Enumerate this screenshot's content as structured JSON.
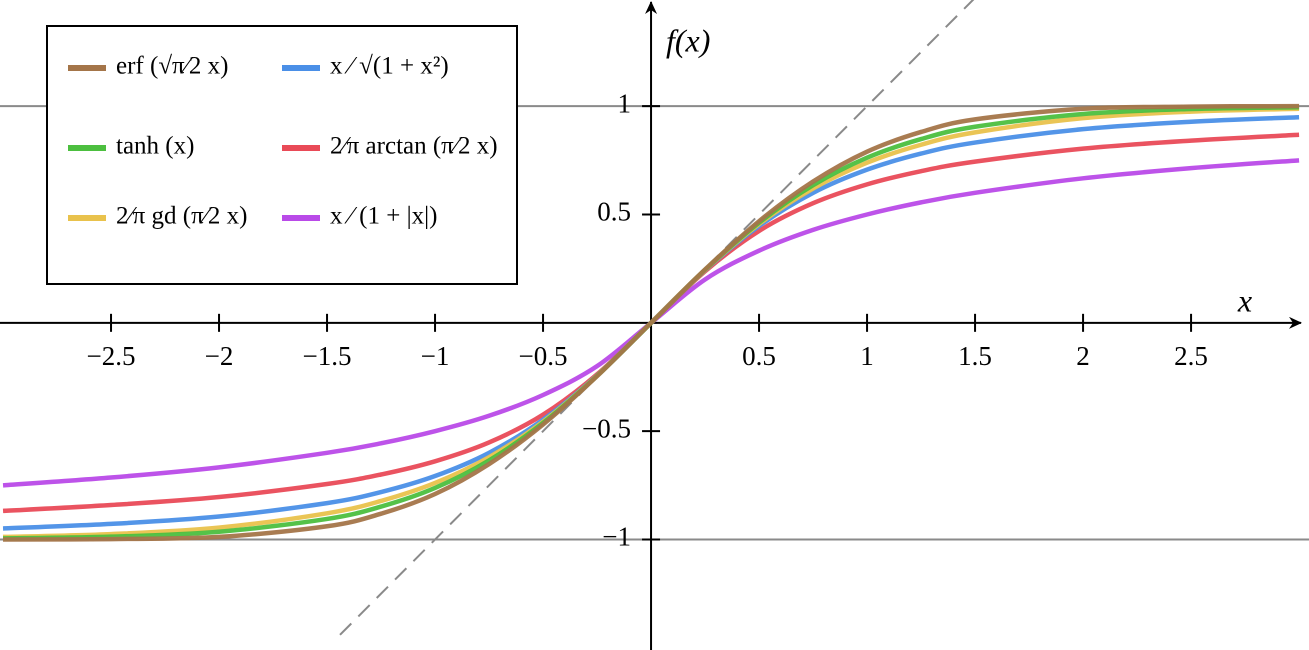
{
  "chart_data": {
    "type": "line",
    "x_label": "x",
    "y_label": "f(x)",
    "xlim": [
      -3.014,
      3.046
    ],
    "ylim": [
      -1.51,
      1.49
    ],
    "xticks": [
      {
        "value": -2.5,
        "label": "−2.5"
      },
      {
        "value": -2,
        "label": "−2"
      },
      {
        "value": -1.5,
        "label": "−1.5"
      },
      {
        "value": -1,
        "label": "−1"
      },
      {
        "value": -0.5,
        "label": "−0.5"
      },
      0.5,
      1,
      1.5,
      2,
      2.5
    ],
    "yticks": [
      {
        "value": -1,
        "label": "−1"
      },
      {
        "value": -0.5,
        "label": "−0.5"
      },
      0.5,
      1
    ],
    "hlines": [
      -1,
      1
    ],
    "reference_line": {
      "x": [
        -1.44,
        1.5
      ],
      "y": [
        -1.44,
        1.5
      ]
    },
    "x": [
      -3,
      -2.5,
      -2,
      -1.5,
      -1.25,
      -1,
      -0.75,
      -0.5,
      -0.25,
      0,
      0.25,
      0.5,
      0.75,
      1,
      1.25,
      1.5,
      2,
      2.5,
      3
    ],
    "series": [
      {
        "name": "erf (√π⁄2 x)",
        "color": "#a47549",
        "values": [
          -1.0,
          -0.998,
          -0.988,
          -0.939,
          -0.881,
          -0.79,
          -0.652,
          -0.469,
          -0.246,
          0,
          0.246,
          0.469,
          0.652,
          0.79,
          0.881,
          0.939,
          0.988,
          0.998,
          1.0
        ]
      },
      {
        "name": "tanh (x)",
        "color": "#4cbf3f",
        "values": [
          -0.995,
          -0.987,
          -0.964,
          -0.905,
          -0.848,
          -0.762,
          -0.635,
          -0.462,
          -0.245,
          0,
          0.245,
          0.462,
          0.635,
          0.762,
          0.848,
          0.905,
          0.964,
          0.987,
          0.995
        ]
      },
      {
        "name": "2⁄π gd (π⁄2 x)",
        "color": "#e9c24c",
        "values": [
          -0.988,
          -0.975,
          -0.945,
          -0.879,
          -0.822,
          -0.739,
          -0.62,
          -0.456,
          -0.244,
          0,
          0.244,
          0.456,
          0.62,
          0.739,
          0.822,
          0.879,
          0.945,
          0.975,
          0.988
        ]
      },
      {
        "name": "x ⁄ √(1 + x²)",
        "color": "#4a8fe7",
        "values": [
          -0.949,
          -0.928,
          -0.894,
          -0.832,
          -0.781,
          -0.707,
          -0.6,
          -0.447,
          -0.243,
          0,
          0.243,
          0.447,
          0.6,
          0.707,
          0.781,
          0.832,
          0.894,
          0.928,
          0.949
        ]
      },
      {
        "name": "2⁄π arctan (π⁄2 x)",
        "color": "#e94a57",
        "values": [
          -0.868,
          -0.841,
          -0.804,
          -0.744,
          -0.7,
          -0.639,
          -0.552,
          -0.424,
          -0.238,
          0,
          0.238,
          0.424,
          0.552,
          0.639,
          0.7,
          0.744,
          0.804,
          0.841,
          0.868
        ]
      },
      {
        "name": "x ⁄ (1 + |x|)",
        "color": "#b94ae8",
        "values": [
          -0.75,
          -0.714,
          -0.667,
          -0.6,
          -0.556,
          -0.5,
          -0.429,
          -0.333,
          -0.2,
          0,
          0.2,
          0.333,
          0.429,
          0.5,
          0.556,
          0.6,
          0.667,
          0.714,
          0.75
        ]
      }
    ]
  }
}
